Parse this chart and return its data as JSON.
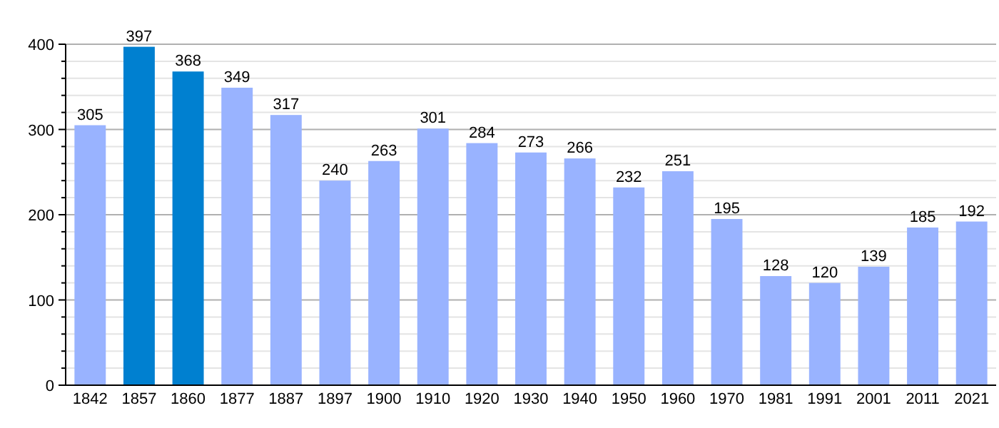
{
  "chart_data": {
    "type": "bar",
    "categories": [
      "1842",
      "1857",
      "1860",
      "1877",
      "1887",
      "1897",
      "1900",
      "1910",
      "1920",
      "1930",
      "1940",
      "1950",
      "1960",
      "1970",
      "1981",
      "1991",
      "2001",
      "2011",
      "2021"
    ],
    "values": [
      305,
      397,
      368,
      349,
      317,
      240,
      263,
      301,
      284,
      273,
      266,
      232,
      251,
      195,
      128,
      120,
      139,
      185,
      192
    ],
    "colors": [
      "#99b3ff",
      "#0080d0",
      "#0080d0",
      "#99b3ff",
      "#99b3ff",
      "#99b3ff",
      "#99b3ff",
      "#99b3ff",
      "#99b3ff",
      "#99b3ff",
      "#99b3ff",
      "#99b3ff",
      "#99b3ff",
      "#99b3ff",
      "#99b3ff",
      "#99b3ff",
      "#99b3ff",
      "#99b3ff",
      "#99b3ff"
    ],
    "ylim": [
      0,
      400
    ],
    "yticks": [
      0,
      {
        "value": 20,
        "label": null
      },
      {
        "value": 40,
        "label": null
      },
      {
        "value": 60,
        "label": null
      },
      {
        "value": 80,
        "label": null
      },
      100,
      {
        "value": 120,
        "label": null
      },
      {
        "value": 140,
        "label": null
      },
      {
        "value": 160,
        "label": null
      },
      {
        "value": 180,
        "label": null
      },
      200,
      {
        "value": 220,
        "label": null
      },
      {
        "value": 240,
        "label": null
      },
      {
        "value": 260,
        "label": null
      },
      {
        "value": 280,
        "label": null
      },
      300,
      {
        "value": 320,
        "label": null
      },
      {
        "value": 340,
        "label": null
      },
      {
        "value": 360,
        "label": null
      },
      {
        "value": 380,
        "label": null
      },
      400
    ],
    "grid": true,
    "data_labels": true
  }
}
